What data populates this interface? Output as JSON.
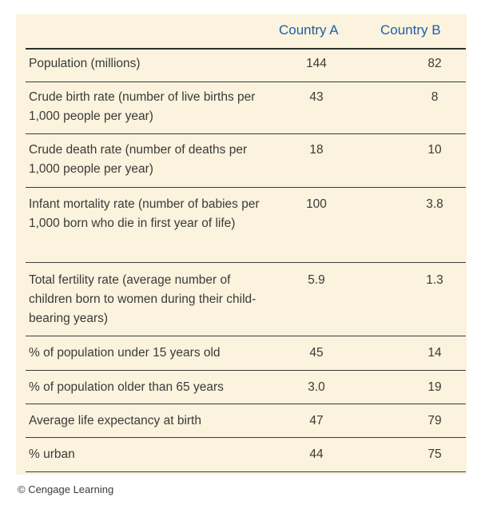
{
  "columns": {
    "country_a": "Country A",
    "country_b": "Country B"
  },
  "rows": [
    {
      "label": "Population (millions)",
      "a": "144",
      "b": "82"
    },
    {
      "label": "Crude birth rate (number of live births per 1,000 people per year)",
      "a": "43",
      "b": "8"
    },
    {
      "label": "Crude death rate (number of deaths per 1,000 people per year)",
      "a": "18",
      "b": "10"
    },
    {
      "label": "Infant mortality rate (number of babies per 1,000 born who die in first year of life)",
      "a": "100",
      "b": "3.8"
    },
    {
      "label": "Total fertility rate (average number of children born to women during their child-bearing years)",
      "a": "5.9",
      "b": "1.3"
    },
    {
      "label": "% of population under 15 years old",
      "a": "45",
      "b": "14"
    },
    {
      "label": "% of population older than 65 years",
      "a": "3.0",
      "b": "19"
    },
    {
      "label": "Average life expectancy at birth",
      "a": "47",
      "b": "79"
    },
    {
      "label": "% urban",
      "a": "44",
      "b": "75"
    }
  ],
  "copyright": "© Cengage Learning",
  "colors": {
    "panel_background": "#fbf3dd",
    "header_text": "#1f5fa6",
    "body_text": "#3a3a3a"
  }
}
